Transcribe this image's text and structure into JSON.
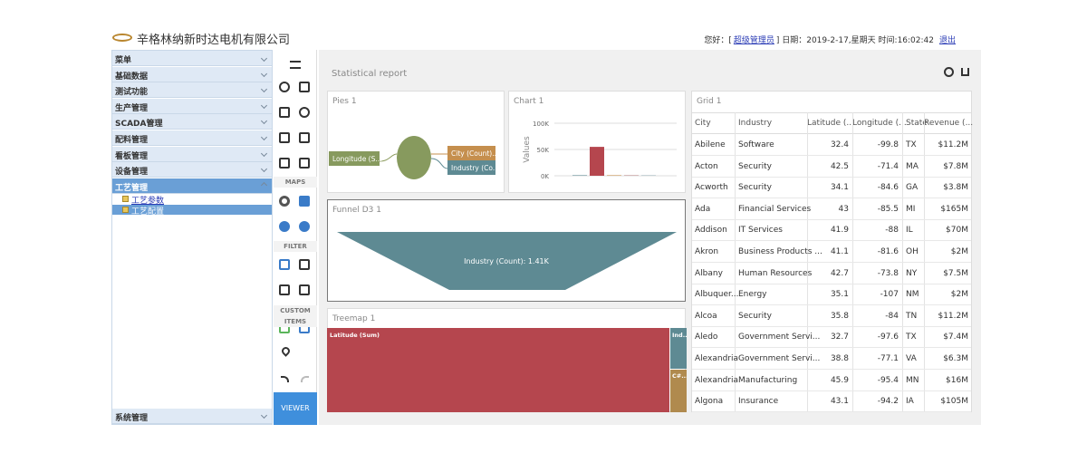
{
  "header": {
    "company": "辛格林纳新时达电机有限公司",
    "greeting": "您好：[",
    "user": "超级管理员",
    "info": "] 日期：2019-2-17,星期天 时间:16:02:42",
    "logout": "退出"
  },
  "sidebar": {
    "title": "菜单",
    "items": [
      "基础数据",
      "测试功能",
      "生产管理",
      "SCADA管理",
      "配料管理",
      "看板管理",
      "设备管理",
      "工艺管理"
    ],
    "subitems": [
      "工艺参数",
      "工艺配置"
    ],
    "footer": "系统管理"
  },
  "toolbar": {
    "sections": [
      "MAPS",
      "FILTER",
      "CUSTOM ITEMS"
    ],
    "viewer": "VIEWER"
  },
  "report": {
    "title": "Statistical report",
    "pies": {
      "title": "Pies 1",
      "labels": [
        "Longitude (S...",
        "City (Count)...",
        "Industry (Co..."
      ]
    },
    "chart": {
      "title": "Chart 1",
      "ylabel": "Values",
      "ylim": [
        0,
        100000
      ],
      "yticks": [
        {
          "value": 0,
          "label": "0K"
        },
        {
          "value": 50000,
          "label": "50K"
        },
        {
          "value": 100000,
          "label": "100K"
        }
      ],
      "values": [
        1000,
        55000,
        1000,
        1000,
        1000
      ],
      "colors": [
        "#5e8a93",
        "#b5464e",
        "#c58f4e",
        "#b98a8a",
        "#9fb6bb"
      ]
    },
    "funnel": {
      "title": "Funnel D3 1",
      "label": "Industry (Count): 1.41K"
    },
    "treemap": {
      "title": "Treemap 1",
      "labels": [
        "Latitude (Sum)",
        "Ind...",
        "C#..."
      ]
    },
    "grid": {
      "title": "Grid 1",
      "columns": [
        "City",
        "Industry",
        "Latitude (...",
        "Longitude (...",
        "State",
        "Revenue (..."
      ],
      "rows": [
        [
          "Abilene",
          "Software",
          32.4,
          -99.8,
          "TX",
          "$11.2M"
        ],
        [
          "Acton",
          "Security",
          42.5,
          -71.4,
          "MA",
          "$7.8M"
        ],
        [
          "Acworth",
          "Security",
          34.1,
          -84.6,
          "GA",
          "$3.8M"
        ],
        [
          "Ada",
          "Financial Services",
          43,
          -85.5,
          "MI",
          "$165M"
        ],
        [
          "Addison",
          "IT Services",
          41.9,
          -88,
          "IL",
          "$70M"
        ],
        [
          "Akron",
          "Business Products ...",
          41.1,
          -81.6,
          "OH",
          "$2M"
        ],
        [
          "Albany",
          "Human Resources",
          42.7,
          -73.8,
          "NY",
          "$7.5M"
        ],
        [
          "Albuquer...",
          "Energy",
          35.1,
          -107,
          "NM",
          "$2M"
        ],
        [
          "Alcoa",
          "Security",
          35.8,
          -84,
          "TN",
          "$11.2M"
        ],
        [
          "Aledo",
          "Government Servi...",
          32.7,
          -97.6,
          "TX",
          "$7.4M"
        ],
        [
          "Alexandria",
          "Government Servi...",
          38.8,
          -77.1,
          "VA",
          "$6.3M"
        ],
        [
          "Alexandria",
          "Manufacturing",
          45.9,
          -95.4,
          "MN",
          "$16M"
        ],
        [
          "Algona",
          "Insurance",
          43.1,
          -94.2,
          "IA",
          "$105M"
        ]
      ]
    }
  }
}
